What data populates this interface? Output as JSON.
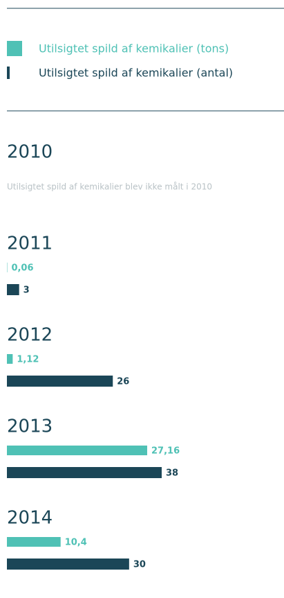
{
  "chart_data": {
    "type": "bar",
    "categories": [
      "2010",
      "2011",
      "2012",
      "2013",
      "2014"
    ],
    "annotations": [
      "Utilsigtet spild af kemikalier blev ikke målt i 2010"
    ],
    "series": [
      {
        "name": "Utilsigtet spild af kemikalier (tons)",
        "color": "#4fc1b5",
        "values": [
          null,
          0.06,
          1.12,
          27.16,
          10.4
        ],
        "value_labels": [
          null,
          "0,06",
          "1,12",
          "27,16",
          "10,4"
        ]
      },
      {
        "name": "Utilsigtet spild af kemikalier (antal)",
        "color": "#1b4657",
        "values": [
          null,
          3,
          26,
          38,
          30
        ]
      }
    ]
  }
}
